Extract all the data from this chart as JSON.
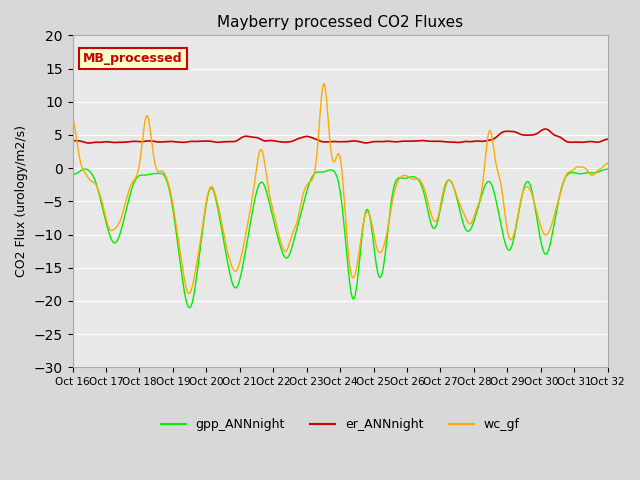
{
  "title": "Mayberry processed CO2 Fluxes",
  "ylabel": "CO2 Flux (urology/m2/s)",
  "ylim": [
    -30,
    20
  ],
  "yticks": [
    -30,
    -25,
    -20,
    -15,
    -10,
    -5,
    0,
    5,
    10,
    15,
    20
  ],
  "xlim": [
    0,
    480
  ],
  "bg_color": "#d8d8d8",
  "plot_bg": "#e8e8e8",
  "line_colors": {
    "gpp": "#00ee00",
    "er": "#cc0000",
    "wc": "#ffaa00"
  },
  "legend_labels": [
    "gpp_ANNnight",
    "er_ANNnight",
    "wc_gf"
  ],
  "annotation_text": "MB_processed",
  "annotation_bg": "#ffffcc",
  "annotation_border": "#cc0000",
  "xtick_labels": [
    "Oct 16",
    "Oct 17",
    "Oct 18",
    "Oct 19",
    "Oct 20",
    "Oct 21",
    "Oct 22",
    "Oct 23",
    "Oct 24",
    "Oct 25",
    "Oct 26",
    "Oct 27",
    "Oct 28",
    "Oct 29",
    "Oct 30",
    "Oct 31"
  ],
  "n_days": 16,
  "pts_per_day": 30
}
